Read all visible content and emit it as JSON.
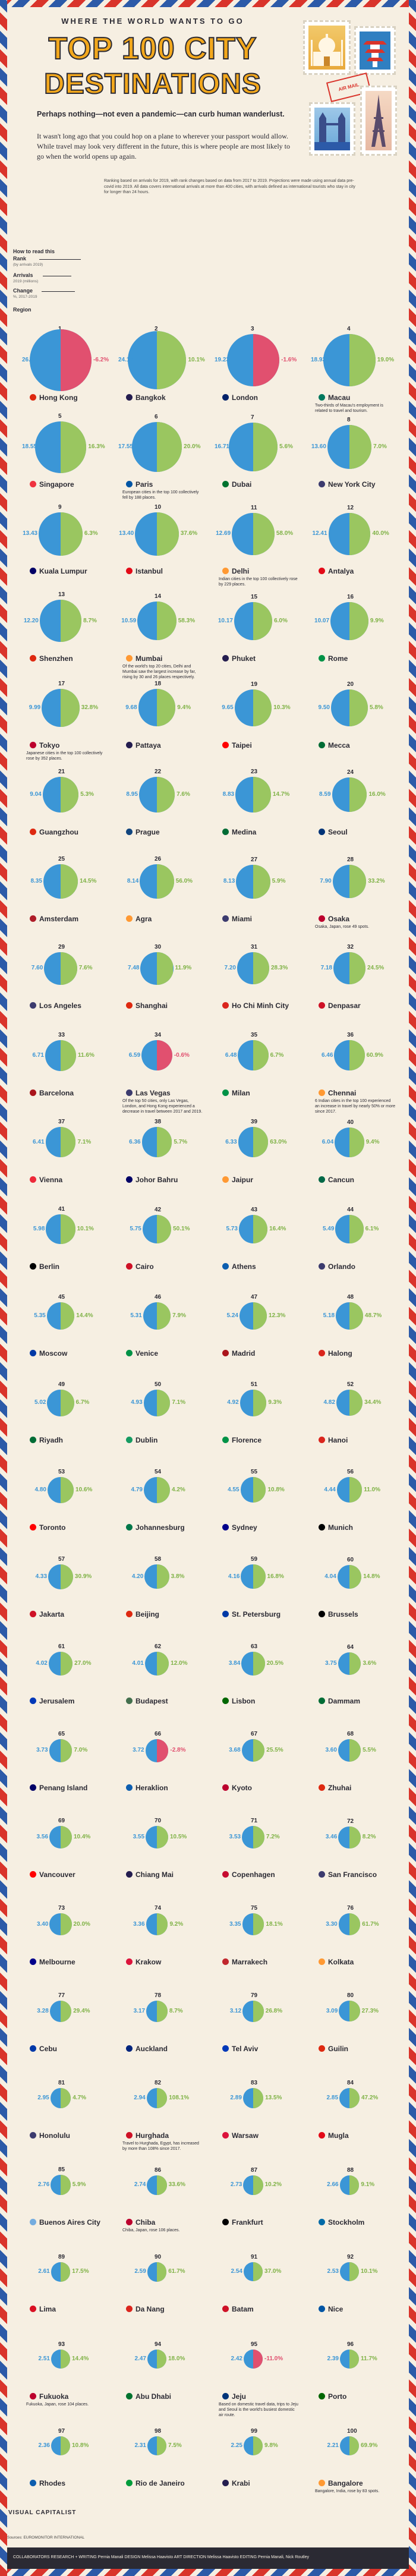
{
  "header": {
    "kicker": "WHERE THE WORLD WANTS TO GO",
    "title_line1": "TOP 100 CITY",
    "title_line2": "DESTINATIONS",
    "intro_bold": "Perhaps nothing—not even a pandemic—can curb human wanderlust.",
    "intro_body": "It wasn't long ago that you could hop on a plane to wherever your passport would allow. While travel may look very different in the future, this is where people are most likely to go when the world opens up again.",
    "postmark": "AIR MAIL"
  },
  "legend": {
    "rank_label": "Rank",
    "rank_sub": "(by arrivals 2019)",
    "arrivals_label": "Arrivals",
    "arrivals_sub": "2019 (millions)",
    "change_label": "Change",
    "change_sub": "%, 2017-2019",
    "region_label": "Region",
    "how_to": "How to read this"
  },
  "methodology": "Ranking based on arrivals for 2019, with rank changes based on data from 2017 to 2019. Projections were made using annual data pre-covid into 2019. All data covers international arrivals at more than 400 cities, with arrivals defined as international tourists who stay in city for longer than 24 hours.",
  "colors": {
    "arrivals": "#3b96d6",
    "growth": "#9ac660",
    "decline": "#e1506f",
    "background": "#f6efe2",
    "title": "#f3a81c"
  },
  "chart_data": {
    "type": "bubble-grid",
    "title": "TOP 100 CITY DESTINATIONS",
    "value_units": "millions of international arrivals",
    "change_units": "% change 2017-2019",
    "cities": [
      {
        "rank": "1",
        "name": "Hong Kong",
        "arrivals": "26.72",
        "change": "-6.2%",
        "flag": "#de2910"
      },
      {
        "rank": "2",
        "name": "Bangkok",
        "arrivals": "24.17",
        "change": "10.1%",
        "flag": "#241d4f"
      },
      {
        "rank": "3",
        "name": "London",
        "arrivals": "19.23",
        "change": "-1.6%",
        "flag": "#012169"
      },
      {
        "rank": "4",
        "name": "Macau",
        "arrivals": "18.93",
        "change": "19.0%",
        "flag": "#00785e"
      },
      {
        "rank": "5",
        "name": "Singapore",
        "arrivals": "18.55",
        "change": "16.3%",
        "flag": "#ef3340"
      },
      {
        "rank": "6",
        "name": "Paris",
        "arrivals": "17.55",
        "change": "20.0%",
        "flag": "#0055a4"
      },
      {
        "rank": "7",
        "name": "Dubai",
        "arrivals": "16.71",
        "change": "5.6%",
        "flag": "#00732f"
      },
      {
        "rank": "8",
        "name": "New York City",
        "arrivals": "13.60",
        "change": "7.0%",
        "flag": "#3c3b6e"
      },
      {
        "rank": "9",
        "name": "Kuala Lumpur",
        "arrivals": "13.43",
        "change": "6.3%",
        "flag": "#010066"
      },
      {
        "rank": "10",
        "name": "Istanbul",
        "arrivals": "13.40",
        "change": "37.6%",
        "flag": "#e30a17"
      },
      {
        "rank": "11",
        "name": "Delhi",
        "arrivals": "12.69",
        "change": "58.0%",
        "flag": "#ff9933"
      },
      {
        "rank": "12",
        "name": "Antalya",
        "arrivals": "12.41",
        "change": "40.0%",
        "flag": "#e30a17"
      },
      {
        "rank": "13",
        "name": "Shenzhen",
        "arrivals": "12.20",
        "change": "8.7%",
        "flag": "#de2910"
      },
      {
        "rank": "14",
        "name": "Mumbai",
        "arrivals": "10.59",
        "change": "58.3%",
        "flag": "#ff9933"
      },
      {
        "rank": "15",
        "name": "Phuket",
        "arrivals": "10.17",
        "change": "6.0%",
        "flag": "#241d4f"
      },
      {
        "rank": "16",
        "name": "Rome",
        "arrivals": "10.07",
        "change": "9.9%",
        "flag": "#009246"
      },
      {
        "rank": "17",
        "name": "Tokyo",
        "arrivals": "9.99",
        "change": "32.8%",
        "flag": "#bc002d"
      },
      {
        "rank": "18",
        "name": "Pattaya",
        "arrivals": "9.68",
        "change": "9.4%",
        "flag": "#241d4f"
      },
      {
        "rank": "19",
        "name": "Taipei",
        "arrivals": "9.65",
        "change": "10.3%",
        "flag": "#fe0000"
      },
      {
        "rank": "20",
        "name": "Mecca",
        "arrivals": "9.50",
        "change": "5.8%",
        "flag": "#006c35"
      },
      {
        "rank": "21",
        "name": "Guangzhou",
        "arrivals": "9.04",
        "change": "5.3%",
        "flag": "#de2910"
      },
      {
        "rank": "22",
        "name": "Prague",
        "arrivals": "8.95",
        "change": "7.6%",
        "flag": "#11457e"
      },
      {
        "rank": "23",
        "name": "Medina",
        "arrivals": "8.83",
        "change": "14.7%",
        "flag": "#006c35"
      },
      {
        "rank": "24",
        "name": "Seoul",
        "arrivals": "8.59",
        "change": "16.0%",
        "flag": "#003478"
      },
      {
        "rank": "25",
        "name": "Amsterdam",
        "arrivals": "8.35",
        "change": "14.5%",
        "flag": "#ae1c28"
      },
      {
        "rank": "26",
        "name": "Agra",
        "arrivals": "8.14",
        "change": "56.0%",
        "flag": "#ff9933"
      },
      {
        "rank": "27",
        "name": "Miami",
        "arrivals": "8.13",
        "change": "5.9%",
        "flag": "#3c3b6e"
      },
      {
        "rank": "28",
        "name": "Osaka",
        "arrivals": "7.90",
        "change": "33.2%",
        "flag": "#bc002d"
      },
      {
        "rank": "29",
        "name": "Los Angeles",
        "arrivals": "7.60",
        "change": "7.6%",
        "flag": "#3c3b6e"
      },
      {
        "rank": "30",
        "name": "Shanghai",
        "arrivals": "7.48",
        "change": "11.9%",
        "flag": "#de2910"
      },
      {
        "rank": "31",
        "name": "Ho Chi Minh City",
        "arrivals": "7.20",
        "change": "28.3%",
        "flag": "#da251d"
      },
      {
        "rank": "32",
        "name": "Denpasar",
        "arrivals": "7.18",
        "change": "24.5%",
        "flag": "#ce1126"
      },
      {
        "rank": "33",
        "name": "Barcelona",
        "arrivals": "6.71",
        "change": "11.6%",
        "flag": "#aa151b"
      },
      {
        "rank": "34",
        "name": "Las Vegas",
        "arrivals": "6.59",
        "change": "-0.6%",
        "flag": "#3c3b6e"
      },
      {
        "rank": "35",
        "name": "Milan",
        "arrivals": "6.48",
        "change": "6.7%",
        "flag": "#009246"
      },
      {
        "rank": "36",
        "name": "Chennai",
        "arrivals": "6.46",
        "change": "60.9%",
        "flag": "#ff9933"
      },
      {
        "rank": "37",
        "name": "Vienna",
        "arrivals": "6.41",
        "change": "7.1%",
        "flag": "#ed2939"
      },
      {
        "rank": "38",
        "name": "Johor Bahru",
        "arrivals": "6.36",
        "change": "5.7%",
        "flag": "#010066"
      },
      {
        "rank": "39",
        "name": "Jaipur",
        "arrivals": "6.33",
        "change": "63.0%",
        "flag": "#ff9933"
      },
      {
        "rank": "40",
        "name": "Cancun",
        "arrivals": "6.04",
        "change": "9.4%",
        "flag": "#006847"
      },
      {
        "rank": "41",
        "name": "Berlin",
        "arrivals": "5.98",
        "change": "10.1%",
        "flag": "#000000"
      },
      {
        "rank": "42",
        "name": "Cairo",
        "arrivals": "5.75",
        "change": "50.1%",
        "flag": "#ce1126"
      },
      {
        "rank": "43",
        "name": "Athens",
        "arrivals": "5.73",
        "change": "16.4%",
        "flag": "#0d5eaf"
      },
      {
        "rank": "44",
        "name": "Orlando",
        "arrivals": "5.49",
        "change": "6.1%",
        "flag": "#3c3b6e"
      },
      {
        "rank": "45",
        "name": "Moscow",
        "arrivals": "5.35",
        "change": "14.4%",
        "flag": "#0039a6"
      },
      {
        "rank": "46",
        "name": "Venice",
        "arrivals": "5.31",
        "change": "7.9%",
        "flag": "#009246"
      },
      {
        "rank": "47",
        "name": "Madrid",
        "arrivals": "5.24",
        "change": "12.3%",
        "flag": "#aa151b"
      },
      {
        "rank": "48",
        "name": "Halong",
        "arrivals": "5.18",
        "change": "48.7%",
        "flag": "#da251d"
      },
      {
        "rank": "49",
        "name": "Riyadh",
        "arrivals": "5.02",
        "change": "6.7%",
        "flag": "#006c35"
      },
      {
        "rank": "50",
        "name": "Dublin",
        "arrivals": "4.93",
        "change": "7.1%",
        "flag": "#169b62"
      },
      {
        "rank": "51",
        "name": "Florence",
        "arrivals": "4.92",
        "change": "9.3%",
        "flag": "#009246"
      },
      {
        "rank": "52",
        "name": "Hanoi",
        "arrivals": "4.82",
        "change": "34.4%",
        "flag": "#da251d"
      },
      {
        "rank": "53",
        "name": "Toronto",
        "arrivals": "4.80",
        "change": "10.6%",
        "flag": "#ff0000"
      },
      {
        "rank": "54",
        "name": "Johannesburg",
        "arrivals": "4.79",
        "change": "4.2%",
        "flag": "#007749"
      },
      {
        "rank": "55",
        "name": "Sydney",
        "arrivals": "4.55",
        "change": "10.8%",
        "flag": "#00008b"
      },
      {
        "rank": "56",
        "name": "Munich",
        "arrivals": "4.44",
        "change": "11.0%",
        "flag": "#000000"
      },
      {
        "rank": "57",
        "name": "Jakarta",
        "arrivals": "4.33",
        "change": "30.9%",
        "flag": "#ce1126"
      },
      {
        "rank": "58",
        "name": "Beijing",
        "arrivals": "4.20",
        "change": "3.8%",
        "flag": "#de2910"
      },
      {
        "rank": "59",
        "name": "St. Petersburg",
        "arrivals": "4.16",
        "change": "16.8%",
        "flag": "#0039a6"
      },
      {
        "rank": "60",
        "name": "Brussels",
        "arrivals": "4.04",
        "change": "14.8%",
        "flag": "#000000"
      },
      {
        "rank": "61",
        "name": "Jerusalem",
        "arrivals": "4.02",
        "change": "27.0%",
        "flag": "#0038b8"
      },
      {
        "rank": "62",
        "name": "Budapest",
        "arrivals": "4.01",
        "change": "12.0%",
        "flag": "#436f4d"
      },
      {
        "rank": "63",
        "name": "Lisbon",
        "arrivals": "3.84",
        "change": "20.5%",
        "flag": "#006600"
      },
      {
        "rank": "64",
        "name": "Dammam",
        "arrivals": "3.75",
        "change": "3.6%",
        "flag": "#006c35"
      },
      {
        "rank": "65",
        "name": "Penang Island",
        "arrivals": "3.73",
        "change": "7.0%",
        "flag": "#010066"
      },
      {
        "rank": "66",
        "name": "Heraklion",
        "arrivals": "3.72",
        "change": "-2.8%",
        "flag": "#0d5eaf"
      },
      {
        "rank": "67",
        "name": "Kyoto",
        "arrivals": "3.68",
        "change": "25.5%",
        "flag": "#bc002d"
      },
      {
        "rank": "68",
        "name": "Zhuhai",
        "arrivals": "3.60",
        "change": "5.5%",
        "flag": "#de2910"
      },
      {
        "rank": "69",
        "name": "Vancouver",
        "arrivals": "3.56",
        "change": "10.4%",
        "flag": "#ff0000"
      },
      {
        "rank": "70",
        "name": "Chiang Mai",
        "arrivals": "3.55",
        "change": "10.5%",
        "flag": "#241d4f"
      },
      {
        "rank": "71",
        "name": "Copenhagen",
        "arrivals": "3.53",
        "change": "7.2%",
        "flag": "#c60c30"
      },
      {
        "rank": "72",
        "name": "San Francisco",
        "arrivals": "3.46",
        "change": "8.2%",
        "flag": "#3c3b6e"
      },
      {
        "rank": "73",
        "name": "Melbourne",
        "arrivals": "3.40",
        "change": "20.0%",
        "flag": "#00008b"
      },
      {
        "rank": "74",
        "name": "Krakow",
        "arrivals": "3.36",
        "change": "9.2%",
        "flag": "#dc143c"
      },
      {
        "rank": "75",
        "name": "Marrakech",
        "arrivals": "3.35",
        "change": "18.1%",
        "flag": "#c1272d"
      },
      {
        "rank": "76",
        "name": "Kolkata",
        "arrivals": "3.30",
        "change": "61.7%",
        "flag": "#ff9933"
      },
      {
        "rank": "77",
        "name": "Cebu",
        "arrivals": "3.28",
        "change": "29.4%",
        "flag": "#0038a8"
      },
      {
        "rank": "78",
        "name": "Auckland",
        "arrivals": "3.17",
        "change": "8.7%",
        "flag": "#00247d"
      },
      {
        "rank": "79",
        "name": "Tel Aviv",
        "arrivals": "3.12",
        "change": "26.8%",
        "flag": "#0038b8"
      },
      {
        "rank": "80",
        "name": "Guilin",
        "arrivals": "3.09",
        "change": "27.3%",
        "flag": "#de2910"
      },
      {
        "rank": "81",
        "name": "Honolulu",
        "arrivals": "2.95",
        "change": "4.7%",
        "flag": "#3c3b6e"
      },
      {
        "rank": "82",
        "name": "Hurghada",
        "arrivals": "2.94",
        "change": "108.1%",
        "flag": "#ce1126"
      },
      {
        "rank": "83",
        "name": "Warsaw",
        "arrivals": "2.89",
        "change": "13.5%",
        "flag": "#dc143c"
      },
      {
        "rank": "84",
        "name": "Mugla",
        "arrivals": "2.85",
        "change": "47.2%",
        "flag": "#e30a17"
      },
      {
        "rank": "85",
        "name": "Buenos Aires City",
        "arrivals": "2.76",
        "change": "5.9%",
        "flag": "#74acdf"
      },
      {
        "rank": "86",
        "name": "Chiba",
        "arrivals": "2.74",
        "change": "33.6%",
        "flag": "#bc002d"
      },
      {
        "rank": "87",
        "name": "Frankfurt",
        "arrivals": "2.73",
        "change": "10.2%",
        "flag": "#000000"
      },
      {
        "rank": "88",
        "name": "Stockholm",
        "arrivals": "2.66",
        "change": "9.1%",
        "flag": "#006aa7"
      },
      {
        "rank": "89",
        "name": "Lima",
        "arrivals": "2.61",
        "change": "17.5%",
        "flag": "#d91023"
      },
      {
        "rank": "90",
        "name": "Da Nang",
        "arrivals": "2.59",
        "change": "61.7%",
        "flag": "#da251d"
      },
      {
        "rank": "91",
        "name": "Batam",
        "arrivals": "2.54",
        "change": "37.0%",
        "flag": "#ce1126"
      },
      {
        "rank": "92",
        "name": "Nice",
        "arrivals": "2.53",
        "change": "10.1%",
        "flag": "#0055a4"
      },
      {
        "rank": "93",
        "name": "Fukuoka",
        "arrivals": "2.51",
        "change": "14.4%",
        "flag": "#bc002d"
      },
      {
        "rank": "94",
        "name": "Abu Dhabi",
        "arrivals": "2.47",
        "change": "18.0%",
        "flag": "#00732f"
      },
      {
        "rank": "95",
        "name": "Jeju",
        "arrivals": "2.42",
        "change": "-11.0%",
        "flag": "#003478"
      },
      {
        "rank": "96",
        "name": "Porto",
        "arrivals": "2.39",
        "change": "11.7%",
        "flag": "#006600"
      },
      {
        "rank": "97",
        "name": "Rhodes",
        "arrivals": "2.36",
        "change": "10.8%",
        "flag": "#0d5eaf"
      },
      {
        "rank": "98",
        "name": "Rio de Janeiro",
        "arrivals": "2.31",
        "change": "7.5%",
        "flag": "#009c3b"
      },
      {
        "rank": "99",
        "name": "Krabi",
        "arrivals": "2.25",
        "change": "9.8%",
        "flag": "#241d4f"
      },
      {
        "rank": "100",
        "name": "Bangalore",
        "arrivals": "2.21",
        "change": "69.9%",
        "flag": "#ff9933"
      }
    ]
  },
  "notes": [
    {
      "after_rank": 4,
      "text": "Two-thirds of Macau's employment is related to travel and tourism."
    },
    {
      "after_rank": 6,
      "text": "European cities in the top 100 collectively fell by 188 places."
    },
    {
      "after_rank": 11,
      "text": "Indian cities in the top 100 collectively rose by 229 places."
    },
    {
      "after_rank": 14,
      "text": "Of the world's top 20 cities, Delhi and Mumbai saw the largest increase by far, rising by 30 and 26 places respectively."
    },
    {
      "after_rank": 17,
      "text": "Japanese cities in the top 100 collectively rose by 352 places."
    },
    {
      "after_rank": 28,
      "text": "Osaka, Japan, rose 49 spots."
    },
    {
      "after_rank": 34,
      "text": "Of the top 50 cities, only Las Vegas, London, and Hong Kong experienced a decrease in travel between 2017 and 2019."
    },
    {
      "after_rank": 36,
      "text": "6 Indian cities in the top 100 experienced an increase in travel by nearly 50% or more since 2017."
    },
    {
      "after_rank": 82,
      "text": "Travel to Hurghada, Egypt, has increased by more than 108% since 2017."
    },
    {
      "after_rank": 86,
      "text": "Chiba, Japan, rose 106 places."
    },
    {
      "after_rank": 93,
      "text": "Fukuoka, Japan, rose 104 places."
    },
    {
      "after_rank": 95,
      "text": "Based on domestic travel data, trips to Jeju and Seoul is the world's busiest domestic air route."
    },
    {
      "after_rank": 100,
      "text": "Bangalore, India, rose by 83 spots."
    }
  ],
  "footer": {
    "brand": "VISUAL CAPITALIST",
    "credits": "COLLABORATORS  RESEARCH + WRITING  Pernia Manali  DESIGN  Melissa Haavisto  ART DIRECTION  Melissa Haavisto  EDITING  Pernia Manali, Nick Routley",
    "sources": "Sources: EUROMONITOR INTERNATIONAL"
  }
}
